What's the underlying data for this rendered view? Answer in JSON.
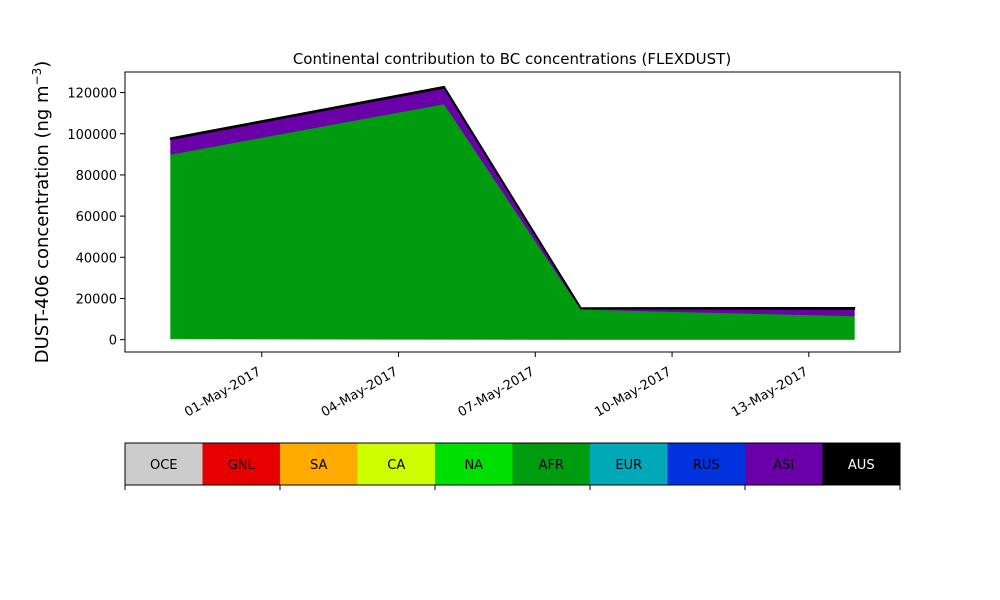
{
  "chart_data": {
    "type": "area",
    "stacked": true,
    "title": "Continental contribution to BC concentrations (FLEXDUST)",
    "xlabel": "",
    "ylabel_main": "DUST-406 concentration (ng m",
    "ylabel_sup": "−3",
    "ylabel_close": ")",
    "x": [
      "2017-04-29",
      "2017-05-05",
      "2017-05-08",
      "2017-05-14"
    ],
    "xlim": [
      "2017-04-28",
      "2017-05-15"
    ],
    "xticks": [
      "2017-05-01",
      "2017-05-04",
      "2017-05-07",
      "2017-05-10",
      "2017-05-13"
    ],
    "xtick_labels": [
      "01-May-2017",
      "04-May-2017",
      "07-May-2017",
      "10-May-2017",
      "13-May-2017"
    ],
    "ylim": [
      -6000,
      130000
    ],
    "yticks": [
      0,
      20000,
      40000,
      60000,
      80000,
      100000,
      120000
    ],
    "ytick_labels": [
      "0",
      "20000",
      "40000",
      "60000",
      "80000",
      "100000",
      "120000"
    ],
    "grid": false,
    "series": [
      {
        "name": "OCE",
        "color": "#cccccc",
        "values": [
          0,
          0,
          0,
          0
        ]
      },
      {
        "name": "GNL",
        "color": "#e60000",
        "values": [
          0,
          0,
          0,
          0
        ]
      },
      {
        "name": "SA",
        "color": "#ffaa00",
        "values": [
          0,
          0,
          0,
          0
        ]
      },
      {
        "name": "CA",
        "color": "#ccff00",
        "values": [
          500,
          200,
          100,
          100
        ]
      },
      {
        "name": "NA",
        "color": "#00e000",
        "values": [
          0,
          0,
          0,
          0
        ]
      },
      {
        "name": "AFR",
        "color": "#009c10",
        "values": [
          89500,
          114300,
          14600,
          11400
        ]
      },
      {
        "name": "EUR",
        "color": "#00a8b8",
        "values": [
          0,
          0,
          0,
          0
        ]
      },
      {
        "name": "RUS",
        "color": "#0033dd",
        "values": [
          0,
          0,
          0,
          0
        ]
      },
      {
        "name": "ASI",
        "color": "#6a00a8",
        "values": [
          7300,
          7800,
          400,
          3400
        ]
      },
      {
        "name": "AUS",
        "color": "#000000",
        "values": [
          600,
          600,
          300,
          600
        ]
      }
    ],
    "legend": {
      "placement": "bottom colorbar",
      "entries": [
        {
          "name": "OCE",
          "color": "#cccccc",
          "text_color": "#000000"
        },
        {
          "name": "GNL",
          "color": "#e60000",
          "text_color": "#000000"
        },
        {
          "name": "SA",
          "color": "#ffaa00",
          "text_color": "#000000"
        },
        {
          "name": "CA",
          "color": "#ccff00",
          "text_color": "#000000"
        },
        {
          "name": "NA",
          "color": "#00e000",
          "text_color": "#000000"
        },
        {
          "name": "AFR",
          "color": "#009c10",
          "text_color": "#000000"
        },
        {
          "name": "EUR",
          "color": "#00a8b8",
          "text_color": "#000000"
        },
        {
          "name": "RUS",
          "color": "#0033dd",
          "text_color": "#000000"
        },
        {
          "name": "ASI",
          "color": "#6a00a8",
          "text_color": "#000000"
        },
        {
          "name": "AUS",
          "color": "#000000",
          "text_color": "#ffffff"
        }
      ]
    }
  }
}
